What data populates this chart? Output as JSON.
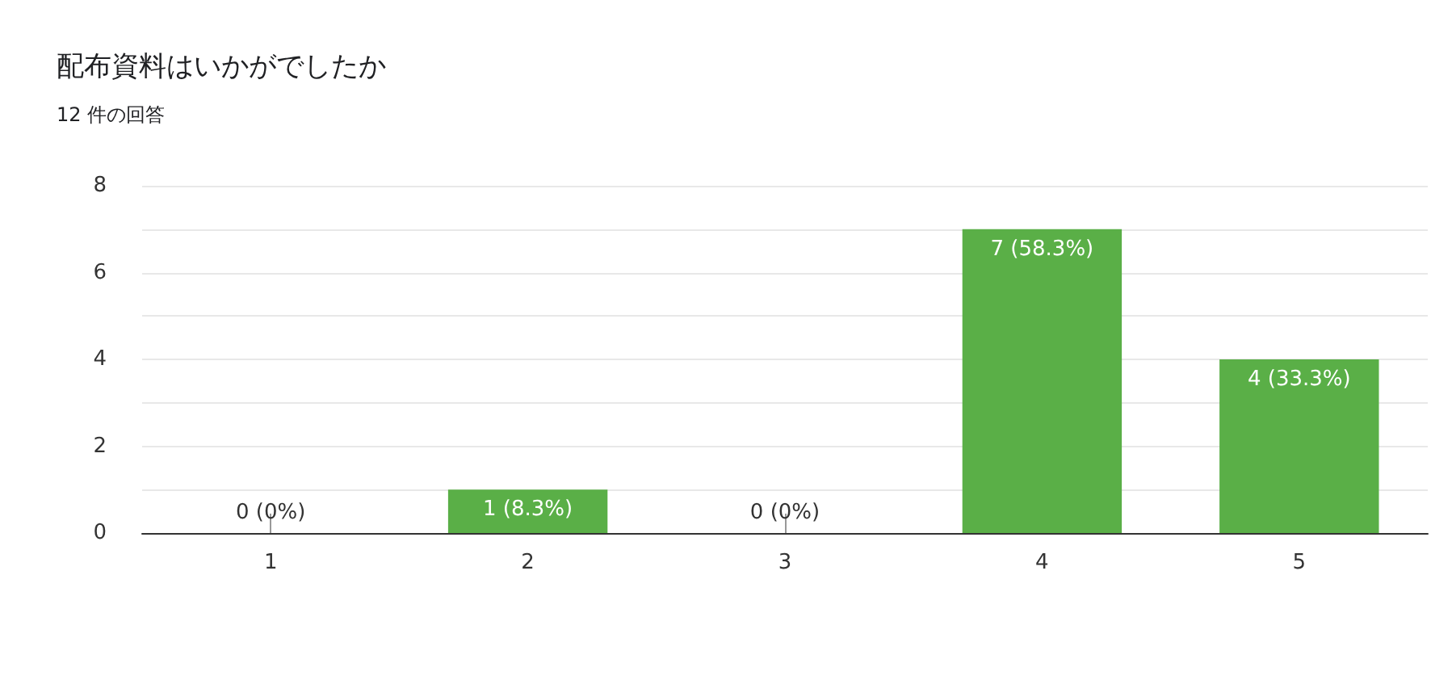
{
  "chart_data": {
    "type": "bar",
    "title": "配布資料はいかがでしたか",
    "subtitle": "12 件の回答",
    "categories": [
      "1",
      "2",
      "3",
      "4",
      "5"
    ],
    "values": [
      0,
      1,
      0,
      7,
      4
    ],
    "value_labels": [
      "0 (0%)",
      "1 (8.3%)",
      "0 (0%)",
      "7 (58.3%)",
      "4 (33.3%)"
    ],
    "color": "#5aaf47",
    "ylim": [
      0,
      8
    ],
    "yticks": [
      0,
      {
        "value": 1,
        "label": null
      },
      2,
      {
        "value": 3,
        "label": null
      },
      4,
      {
        "value": 5,
        "label": null
      },
      6,
      {
        "value": 7,
        "label": null
      },
      8
    ],
    "grid": "y"
  }
}
